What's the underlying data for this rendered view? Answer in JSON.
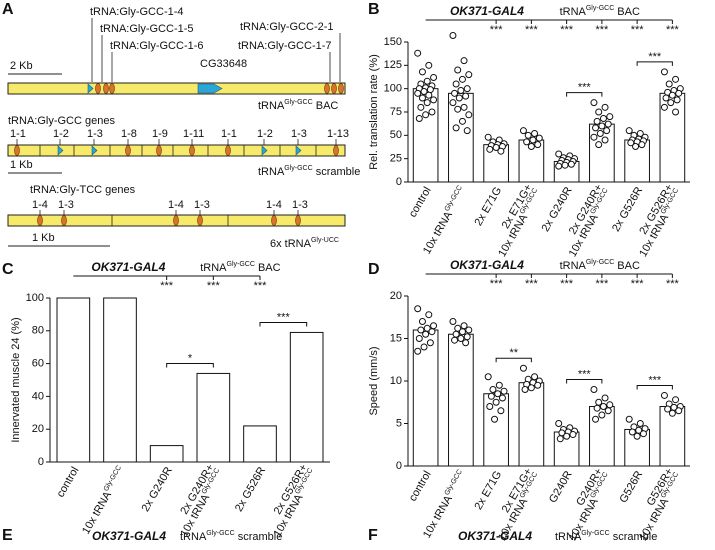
{
  "panel_labels": [
    "A",
    "B",
    "C",
    "D",
    "E",
    "F"
  ],
  "diagram": {
    "bac": {
      "scale": "2 Kb",
      "genes": [
        "tRNA:Gly-GCC-1-4",
        "tRNA:Gly-GCC-1-5",
        "tRNA:Gly-GCC-1-6",
        "tRNA:Gly-GCC-2-1",
        "tRNA:Gly-GCC-1-7"
      ],
      "gene_other": "CG33648",
      "name": {
        "text": "tRNA",
        "sup": "Gly-GCC",
        "after": " BAC"
      }
    },
    "scramble": {
      "title": "tRNA:Gly-GCC genes",
      "genes": [
        "1-1",
        "1-2",
        "1-3",
        "1-8",
        "1-9",
        "1-11",
        "1-1",
        "1-2",
        "1-3",
        "1-13"
      ],
      "scale": "1 Kb",
      "name": {
        "text": "tRNA",
        "sup": "Gly-GCC",
        "after": " scramble"
      }
    },
    "ucc": {
      "title": "tRNA:Gly-TCC genes",
      "genes": [
        "1-4",
        "1-3",
        "1-4",
        "1-3",
        "1-4",
        "1-3"
      ],
      "scale": "1 Kb",
      "name": {
        "text": "6x tRNA",
        "sup": "Gly-UCC"
      }
    }
  },
  "chart_data": [
    {
      "type": "bar",
      "header": {
        "genotype": "OK371-GAL4",
        "construct": {
          "text": "tRNA",
          "sup": "Gly-GCC",
          "after": " BAC"
        }
      },
      "y_label": "Rel. translation rate (%)",
      "categories": [
        [
          "control"
        ],
        [
          {
            "text": "10x tRNA",
            "sup": "Gly-GCC"
          }
        ],
        [
          "2x E71G"
        ],
        [
          "2x E71G+",
          {
            "text": "10x tRNA",
            "sup": "Gly-GCC"
          }
        ],
        [
          "2x G240R"
        ],
        [
          "2x G240R+",
          {
            "text": "10x tRNA",
            "sup": "Gly-GCC"
          }
        ],
        [
          "2x G526R"
        ],
        [
          "2x G526R+",
          {
            "text": "10x tRNA",
            "sup": "Gly-GCC"
          }
        ]
      ],
      "values": [
        100,
        95,
        40,
        45,
        22,
        62,
        45,
        95
      ],
      "points": [
        [
          138,
          125,
          118,
          112,
          108,
          105,
          103,
          101,
          100,
          99,
          97,
          95,
          93,
          90,
          88,
          85,
          80,
          75,
          72,
          68
        ],
        [
          157,
          130,
          120,
          115,
          110,
          105,
          100,
          98,
          95,
          92,
          90,
          85,
          80,
          78,
          72,
          65,
          58,
          55
        ],
        [
          48,
          45,
          43,
          41,
          40,
          39,
          38,
          37,
          35,
          33
        ],
        [
          55,
          52,
          50,
          47,
          45,
          43,
          40,
          38
        ],
        [
          30,
          28,
          26,
          25,
          24,
          23,
          22,
          21,
          20,
          19,
          18,
          17
        ],
        [
          85,
          80,
          75,
          70,
          68,
          65,
          62,
          60,
          58,
          55,
          52,
          48,
          45,
          40
        ],
        [
          55,
          52,
          50,
          48,
          46,
          45,
          44,
          43,
          42,
          40,
          38
        ],
        [
          118,
          110,
          105,
          100,
          98,
          96,
          95,
          93,
          90,
          88,
          85,
          80,
          75
        ]
      ],
      "vs_control": [
        null,
        null,
        "***",
        "***",
        "***",
        "***",
        "***",
        "***"
      ],
      "pair_comparisons": [
        {
          "categories": [
            4,
            5
          ],
          "label": "***"
        },
        {
          "categories": [
            6,
            7
          ],
          "label": "***"
        }
      ],
      "ylim": [
        0,
        150
      ],
      "yticks": [
        0,
        25,
        50,
        75,
        100,
        125,
        150
      ],
      "color": "#ffffff"
    },
    {
      "type": "bar",
      "header": {
        "genotype": "OK371-GAL4",
        "construct": {
          "text": "tRNA",
          "sup": "Gly-GCC",
          "after": " BAC"
        }
      },
      "y_label": "Innervated muscle 24 (%)",
      "categories": [
        [
          "control"
        ],
        [
          {
            "text": "10x tRNA",
            "sup": "Gly-GCC"
          }
        ],
        [
          "2x G240R"
        ],
        [
          "2x G240R+",
          {
            "text": "10x tRNA",
            "sup": "Gly-GCC"
          }
        ],
        [
          "2x G526R"
        ],
        [
          "2x G526R+",
          {
            "text": "10x tRNA",
            "sup": "Gly-GCC"
          }
        ]
      ],
      "values": [
        100,
        100,
        10,
        54,
        22,
        79
      ],
      "vs_control": [
        null,
        null,
        "***",
        "***",
        "***",
        null
      ],
      "pair_comparisons": [
        {
          "categories": [
            2,
            3
          ],
          "label": "*"
        },
        {
          "categories": [
            4,
            5
          ],
          "label": "***"
        }
      ],
      "ylim": [
        0,
        100
      ],
      "yticks": [
        0,
        20,
        40,
        60,
        80,
        100
      ],
      "color": "#ffffff"
    },
    {
      "type": "bar",
      "header": {
        "genotype": "OK371-GAL4",
        "construct": {
          "text": "tRNA",
          "sup": "Gly-GCC",
          "after": " BAC"
        }
      },
      "y_label": "Speed (mm/s)",
      "categories": [
        [
          "control"
        ],
        [
          {
            "text": "10x tRNA",
            "sup": "Gly-GCC"
          }
        ],
        [
          "2x E71G"
        ],
        [
          "2x E71G+",
          {
            "text": "10x tRNA",
            "sup": "Gly-GCC"
          }
        ],
        [
          "G240R"
        ],
        [
          "G240R+",
          {
            "text": "10x tRNA",
            "sup": "Gly-GCC"
          }
        ],
        [
          "G526R"
        ],
        [
          "G526R+",
          {
            "text": "10x tRNA",
            "sup": "Gly-GCC"
          }
        ]
      ],
      "values": [
        16,
        15.5,
        8.5,
        9.8,
        4,
        7,
        4.3,
        7
      ],
      "points": [
        [
          18.5,
          17.8,
          17,
          16.5,
          16.2,
          16,
          15.8,
          15.5,
          15,
          14.5,
          14,
          13.5
        ],
        [
          17,
          16.5,
          16.2,
          16,
          15.8,
          15.5,
          15.2,
          15,
          14.8,
          14.5
        ],
        [
          10.5,
          9.5,
          9,
          8.8,
          8.5,
          8.2,
          8,
          7.5,
          7,
          6.5,
          5.5
        ],
        [
          11.5,
          10.5,
          10.2,
          10,
          9.8,
          9.6,
          9.5,
          9.2,
          9
        ],
        [
          5,
          4.5,
          4.3,
          4.1,
          4,
          3.9,
          3.7,
          3.5,
          3.2
        ],
        [
          9,
          8,
          7.5,
          7.2,
          7,
          6.8,
          6.5,
          6,
          5.5
        ],
        [
          5.5,
          5,
          4.6,
          4.4,
          4.2,
          4,
          3.8,
          3.5
        ],
        [
          8.3,
          7.8,
          7.3,
          7,
          6.9,
          6.7,
          6.5,
          6.2
        ]
      ],
      "vs_control": [
        null,
        null,
        "***",
        "***",
        "***",
        "***",
        "***",
        "***"
      ],
      "pair_comparisons": [
        {
          "categories": [
            2,
            3
          ],
          "label": "**"
        },
        {
          "categories": [
            4,
            5
          ],
          "label": "***"
        },
        {
          "categories": [
            6,
            7
          ],
          "label": "***"
        }
      ],
      "ylim": [
        0,
        20
      ],
      "yticks": [
        0,
        5,
        10,
        15,
        20
      ],
      "color": "#ffffff"
    }
  ],
  "footer_panels": [
    {
      "genotype": "OK371-GAL4",
      "construct": {
        "text": "tRNA",
        "sup": "Gly-GCC",
        "after": " scramble"
      }
    },
    {
      "genotype": "OK371-GAL4",
      "construct": {
        "text": "tRNA",
        "sup": "Gly-GCC",
        "after": " scramble"
      }
    }
  ]
}
